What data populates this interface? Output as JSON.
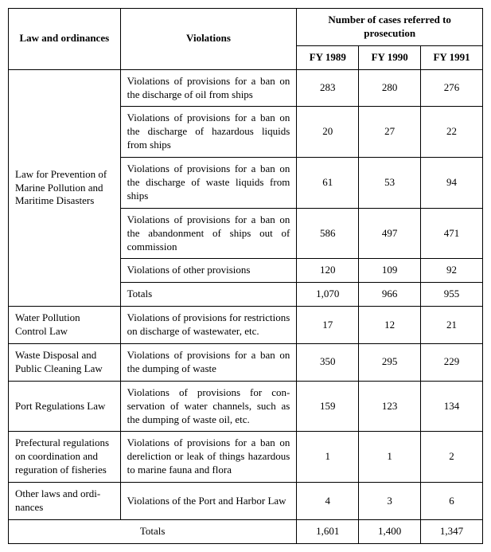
{
  "headers": {
    "law": "Law and ordinances",
    "violations": "Violations",
    "cases_group": "Number of cases referred to prosecution",
    "fy1989": "FY 1989",
    "fy1990": "FY 1990",
    "fy1991": "FY 1991"
  },
  "sections": [
    {
      "law": "Law for Prevention of Marine Pollution and Maritime Disas­ters",
      "rows": [
        {
          "v": "Violations of provisions for a ban on the discharge of oil from ships",
          "y89": "283",
          "y90": "280",
          "y91": "276"
        },
        {
          "v": "Violations of provisions for a ban on the discharge of hazard­ous liquids from ships",
          "y89": "20",
          "y90": "27",
          "y91": "22"
        },
        {
          "v": "Violations of provisions for a ban on the discharge of waste liquids from ships",
          "y89": "61",
          "y90": "53",
          "y91": "94"
        },
        {
          "v": "Violations of provisions for a ban on the abandonment of ships out of commission",
          "y89": "586",
          "y90": "497",
          "y91": "471"
        },
        {
          "v": "Violations of other provisions",
          "y89": "120",
          "y90": "109",
          "y91": "92"
        },
        {
          "v": "Totals",
          "y89": "1,070",
          "y90": "966",
          "y91": "955"
        }
      ]
    },
    {
      "law": "Water Pollution Control Law",
      "rows": [
        {
          "v": "Violations of provisions for restrictions on discharge of wastewater, etc.",
          "y89": "17",
          "y90": "12",
          "y91": "21"
        }
      ]
    },
    {
      "law": "Waste Disposal and Public Cleaning Law",
      "rows": [
        {
          "v": "Violations of provisions for a ban on the dumping of waste",
          "y89": "350",
          "y90": "295",
          "y91": "229"
        }
      ]
    },
    {
      "law": "Port Regulations Law",
      "rows": [
        {
          "v": "Violations of provisions for con­servation of water channels, such as the dumping of waste oil, etc.",
          "y89": "159",
          "y90": "123",
          "y91": "134"
        }
      ]
    },
    {
      "law": "Prefectural regula­tions on coordina­tion and reguration of fisheries",
      "rows": [
        {
          "v": "Violations of provisions for a ban on dereliction or leak of things hazardous to marine fauna and flora",
          "y89": "1",
          "y90": "1",
          "y91": "2"
        }
      ]
    },
    {
      "law": "Other laws and ordi­nances",
      "rows": [
        {
          "v": "Violations of the Port and Har­bor Law",
          "y89": "4",
          "y90": "3",
          "y91": "6"
        }
      ]
    }
  ],
  "grand_totals": {
    "label": "Totals",
    "y89": "1,601",
    "y90": "1,400",
    "y91": "1,347"
  }
}
